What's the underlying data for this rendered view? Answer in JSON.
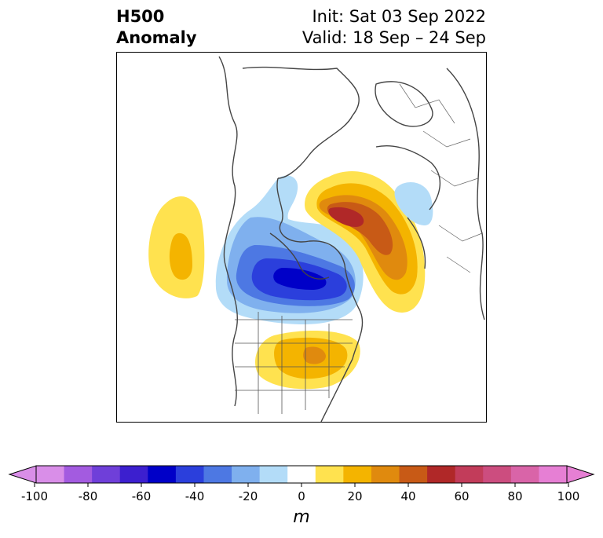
{
  "title": {
    "left_line1": "H500",
    "left_line2": "Anomaly",
    "right_line1": "Init: Sat 03 Sep 2022",
    "right_line2": "Valid: 18 Sep – 24 Sep"
  },
  "colorbar": {
    "unit": "m",
    "ticks": [
      "-100",
      "-80",
      "-60",
      "-40",
      "-20",
      "0",
      "20",
      "40",
      "60",
      "80",
      "100"
    ],
    "colors": [
      "#d98ee8",
      "#a35be0",
      "#6f3fd9",
      "#3c1fcf",
      "#0000c8",
      "#2b3fdc",
      "#4d78e3",
      "#7fb0ee",
      "#b3dcf8",
      "#ffffff",
      "#ffe24f",
      "#f4b400",
      "#e08a0e",
      "#c85a16",
      "#b02828",
      "#c23c5a",
      "#cc4d7f",
      "#d964a8",
      "#e67fd4"
    ],
    "extend_min_color": "#d98ee8",
    "extend_max_color": "#e67fd4"
  },
  "map": {
    "projection": "polar stereographic, North America / North Atlantic",
    "features": {
      "positive_anomaly_us": "+10 to +40 m over central/eastern US",
      "positive_anomaly_greenland": "+10 to +70 m over Greenland",
      "positive_anomaly_pacific": "+10 to +30 m over NE Pacific",
      "negative_anomaly_canada": "-10 to -60 m over central Canada / Hudson Bay",
      "negative_anomaly_scandinavia": "-10 to -20 m over Scandinavia"
    }
  }
}
